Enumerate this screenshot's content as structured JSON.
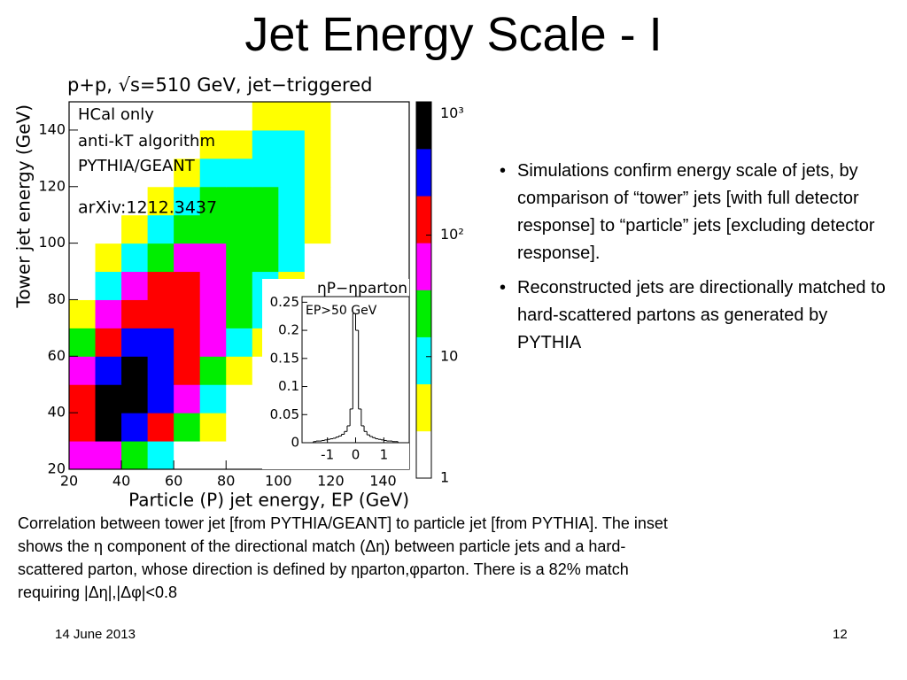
{
  "title": "Jet Energy Scale - I",
  "chart_data": [
    {
      "type": "heatmap",
      "title": "p+p, √s=510 GeV, jet−triggered",
      "xlabel": "Particle (P) jet energy, EP (GeV)",
      "ylabel": "Tower jet energy (GeV)",
      "annotations": [
        "HCal only",
        "anti-kT algorithm",
        "PYTHIA/GEANT",
        "arXiv:1212.3437"
      ],
      "xlim": [
        20,
        150
      ],
      "ylim": [
        20,
        150
      ],
      "xticks": [
        20,
        40,
        60,
        80,
        100,
        120,
        140
      ],
      "yticks": [
        20,
        40,
        60,
        80,
        100,
        120,
        140
      ],
      "xbins": [
        20,
        30,
        40,
        50,
        60,
        70,
        80,
        90,
        100,
        110,
        120,
        130,
        140,
        150
      ],
      "ybins": [
        20,
        30,
        40,
        50,
        60,
        70,
        80,
        90,
        100,
        110,
        120,
        130,
        140,
        150
      ],
      "z": [
        [
          40,
          60,
          30,
          8,
          2,
          0,
          0,
          0,
          0,
          0,
          0,
          0,
          0
        ],
        [
          200,
          600,
          400,
          120,
          20,
          3,
          0,
          0,
          0,
          0,
          0,
          0,
          0
        ],
        [
          150,
          900,
          1000,
          400,
          80,
          10,
          2,
          0,
          0,
          0,
          0,
          0,
          0
        ],
        [
          60,
          500,
          800,
          500,
          150,
          30,
          5,
          1,
          0,
          0,
          0,
          0,
          0
        ],
        [
          15,
          150,
          400,
          350,
          200,
          60,
          12,
          3,
          0,
          0,
          0,
          0,
          0
        ],
        [
          3,
          40,
          150,
          200,
          150,
          80,
          25,
          6,
          1,
          0,
          0,
          0,
          0
        ],
        [
          1,
          10,
          45,
          90,
          100,
          70,
          35,
          12,
          3,
          0,
          0,
          0,
          0
        ],
        [
          0,
          3,
          12,
          30,
          50,
          50,
          35,
          18,
          6,
          2,
          0,
          0,
          0
        ],
        [
          0,
          1,
          4,
          10,
          22,
          30,
          28,
          20,
          10,
          3,
          1,
          0,
          0
        ],
        [
          0,
          0,
          1,
          4,
          9,
          15,
          18,
          15,
          10,
          5,
          2,
          0,
          0
        ],
        [
          0,
          0,
          0,
          1,
          4,
          7,
          10,
          10,
          8,
          5,
          2,
          1,
          0
        ],
        [
          0,
          0,
          0,
          0,
          1,
          3,
          5,
          6,
          6,
          4,
          2,
          1,
          0
        ],
        [
          0,
          0,
          0,
          0,
          0,
          1,
          2,
          3,
          3,
          3,
          2,
          1,
          0
        ]
      ],
      "zlim": [
        1,
        1250
      ],
      "zlog": true,
      "colors": [
        "#ffffff",
        "#ffff00",
        "#00ffff",
        "#00ee00",
        "#ff00ff",
        "#ff0000",
        "#0000ff",
        "#000000"
      ],
      "zticks": [
        1,
        10,
        {
          "value": 100,
          "label": "10²"
        },
        {
          "value": 1000,
          "label": "10³"
        }
      ]
    },
    {
      "type": "histogram",
      "title": "ηP−ηparton",
      "annotation": "EP>50 GeV",
      "bins": [
        -1.5,
        -1.4,
        -1.3,
        -1.2,
        -1.1,
        -1.0,
        -0.9,
        -0.8,
        -0.7,
        -0.6,
        -0.5,
        -0.4,
        -0.3,
        -0.2,
        -0.1,
        0,
        0.1,
        0.2,
        0.3,
        0.4,
        0.5,
        0.6,
        0.7,
        0.8,
        0.9,
        1.0,
        1.1,
        1.2,
        1.3,
        1.4,
        1.5
      ],
      "values": [
        0.002,
        0.003,
        0.003,
        0.004,
        0.005,
        0.006,
        0.007,
        0.008,
        0.01,
        0.012,
        0.015,
        0.02,
        0.03,
        0.06,
        0.23,
        0.2,
        0.06,
        0.03,
        0.02,
        0.014,
        0.011,
        0.009,
        0.007,
        0.006,
        0.005,
        0.004,
        0.003,
        0.003,
        0.002,
        0.002
      ],
      "xlim": [
        -1.9,
        1.9
      ],
      "ylim": [
        0,
        0.26
      ],
      "xticks": [
        -1,
        0,
        1
      ],
      "yticks": [
        0,
        0.05,
        0.1,
        0.15,
        0.2,
        0.25
      ]
    }
  ],
  "bullets": [
    "Simulations confirm energy scale of jets, by comparison of “tower” jets [with full detector response] to “particle” jets [excluding detector response].",
    "Reconstructed jets are directionally matched to hard-scattered partons as generated by PYTHIA"
  ],
  "caption": "Correlation between tower jet [from PYTHIA/GEANT] to particle jet [from PYTHIA].  The inset shows the η component of the directional match (Δη) between particle jets and a hard-scattered parton, whose direction is defined by ηparton,φparton.  There is a 82% match requiring |Δη|,|Δφ|<0.8",
  "footer": {
    "date": "14 June 2013",
    "page": "12"
  }
}
